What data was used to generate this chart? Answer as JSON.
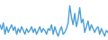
{
  "values": [
    30,
    25,
    32,
    20,
    28,
    22,
    26,
    30,
    24,
    28,
    20,
    26,
    22,
    28,
    24,
    20,
    26,
    22,
    24,
    28,
    22,
    26,
    20,
    24,
    28,
    22,
    26,
    24,
    20,
    26,
    24,
    30,
    20,
    28,
    22,
    18,
    24,
    28,
    20,
    22,
    26,
    32,
    50,
    38,
    30,
    42,
    28,
    36,
    48,
    32,
    36,
    22,
    28,
    34,
    24,
    30,
    26,
    22,
    26,
    28,
    20,
    26,
    22,
    18,
    24,
    22
  ],
  "line_color": "#4a9fd4",
  "background_color": "#ffffff",
  "linewidth": 1.0,
  "ylim": [
    14,
    56
  ]
}
